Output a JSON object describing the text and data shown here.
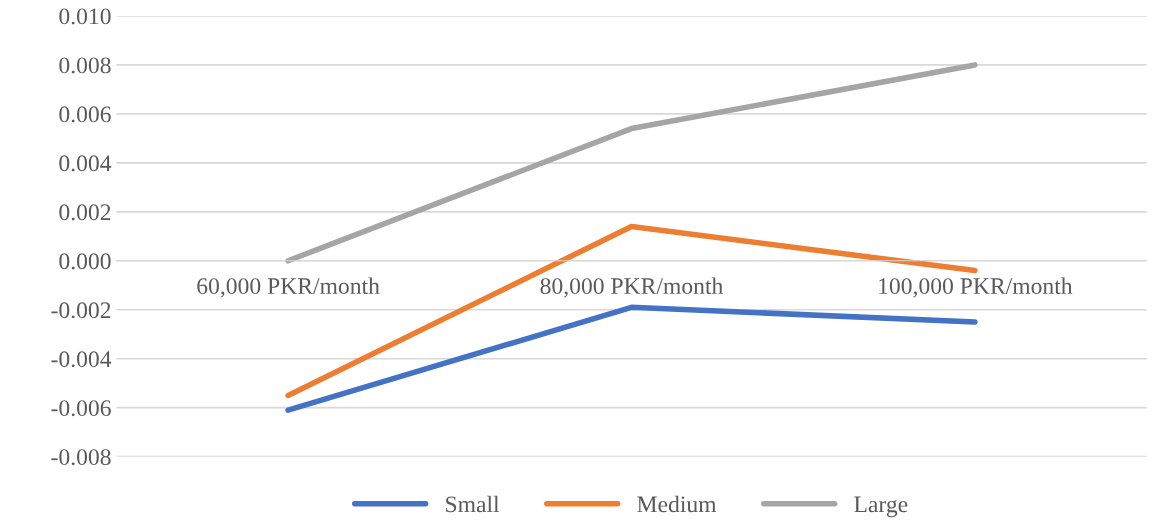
{
  "chart_data": {
    "type": "line",
    "categories": [
      "60,000 PKR/month",
      "80,000 PKR/month",
      "100,000 PKR/month"
    ],
    "series": [
      {
        "name": "Small",
        "color": "#4472c4",
        "values": [
          -0.0061,
          -0.0019,
          -0.0025
        ]
      },
      {
        "name": "Medium",
        "color": "#ed7d31",
        "values": [
          -0.0055,
          0.0014,
          -0.0004
        ]
      },
      {
        "name": "Large",
        "color": "#a5a5a5",
        "values": [
          0.0,
          0.0054,
          0.008
        ]
      }
    ],
    "ylim": [
      -0.008,
      0.01
    ],
    "yticks": [
      {
        "value": -0.008,
        "label": "-0.008"
      },
      {
        "value": -0.006,
        "label": "-0.006"
      },
      {
        "value": -0.004,
        "label": "-0.004"
      },
      {
        "value": -0.002,
        "label": "-0.002"
      },
      {
        "value": 0,
        "label": "0.000"
      },
      {
        "value": 0.002,
        "label": "0.002"
      },
      {
        "value": 0.004,
        "label": "0.004"
      },
      {
        "value": 0.006,
        "label": "0.006"
      },
      {
        "value": 0.008,
        "label": "0.008"
      },
      {
        "value": 0.01,
        "label": "0.010"
      }
    ],
    "grid": "y",
    "legend": "bottom",
    "marker": "none",
    "line_style": "solid"
  }
}
